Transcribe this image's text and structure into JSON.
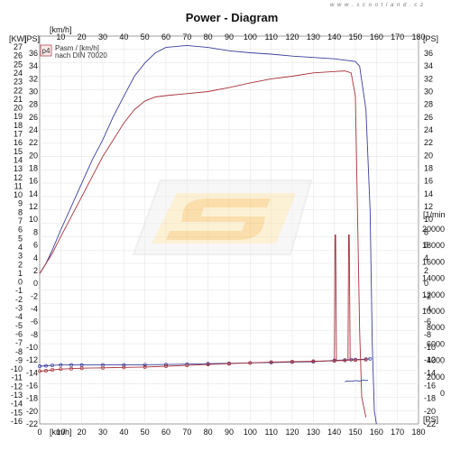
{
  "watermark": "w w w . s c o o t l a n d . c z",
  "chart_data": {
    "type": "line",
    "title": "Power - Diagram",
    "x_unit": "[km/h]",
    "x_ticks": [
      "0",
      "10",
      "20",
      "30",
      "40",
      "50",
      "60",
      "70",
      "80",
      "90",
      "100",
      "110",
      "120",
      "130",
      "140",
      "150",
      "160",
      "170",
      "180"
    ],
    "xlim": [
      0,
      180
    ],
    "left_outer_unit": "[KW]",
    "left_outer_ticks": [
      "27",
      "26",
      "25",
      "24",
      "23",
      "22",
      "21",
      "20",
      "19",
      "18",
      "17",
      "16",
      "15",
      "14",
      "13",
      "12",
      "11",
      "10",
      "9",
      "8",
      "7",
      "6",
      "5",
      "4",
      "3",
      "2",
      "1",
      "0",
      "-1",
      "-2",
      "-3",
      "-4",
      "-5",
      "-6",
      "-7",
      "-8",
      "-9",
      "-10",
      "-11",
      "-12",
      "-13",
      "-14",
      "-15",
      "-16"
    ],
    "left_inner_unit": "[PS]",
    "left_inner_ticks": [
      "36",
      "34",
      "32",
      "30",
      "28",
      "26",
      "24",
      "22",
      "20",
      "18",
      "16",
      "14",
      "12",
      "10",
      "8",
      "6",
      "4",
      "2",
      "0",
      "-2",
      "-4",
      "-6",
      "-8",
      "-10",
      "-12",
      "-14",
      "-16",
      "-18",
      "-20",
      "-22"
    ],
    "right_unit": "[PS]",
    "right_ticks": [
      "36",
      "34",
      "32",
      "30",
      "28",
      "26",
      "24",
      "22",
      "20",
      "18",
      "16",
      "14",
      "12",
      "10",
      "8",
      "6",
      "4",
      "2",
      "0",
      "-2",
      "-4",
      "-6",
      "-8",
      "-10",
      "-12",
      "-14",
      "-16",
      "-18",
      "-20",
      "-22"
    ],
    "rpm_unit": "[1/min",
    "rpm_ticks": [
      "20000",
      "18000",
      "16000",
      "14000",
      "12000",
      "10000",
      "8000",
      "6000",
      "4000",
      "2000",
      "0"
    ],
    "ylim_ps": [
      -22,
      36
    ],
    "ylim_rpm": [
      0,
      20000
    ],
    "legend": {
      "box": "p4",
      "line1": "Pasm / [km/h]",
      "line2": "nach DIN 70020"
    },
    "series": [
      {
        "color": "#3a3f9c",
        "axis": "ps",
        "x": [
          0,
          3,
          6,
          10,
          15,
          20,
          25,
          30,
          35,
          40,
          45,
          50,
          55,
          60,
          70,
          80,
          90,
          100,
          110,
          120,
          130,
          140,
          145,
          150,
          152,
          155,
          157,
          158,
          159,
          160
        ],
        "y": [
          0.5,
          2,
          4,
          7,
          10.5,
          14,
          17.5,
          20.5,
          24,
          27,
          30,
          32,
          33.5,
          34.3,
          34.6,
          34.3,
          33.8,
          33.5,
          33.3,
          33,
          32.8,
          32.6,
          32.4,
          32.2,
          31.5,
          25,
          10,
          -10,
          -20,
          -22
        ]
      },
      {
        "color": "#a8323a",
        "axis": "ps",
        "x": [
          0,
          3,
          6,
          10,
          15,
          20,
          25,
          30,
          35,
          40,
          45,
          50,
          55,
          60,
          70,
          80,
          90,
          100,
          110,
          120,
          130,
          140,
          145,
          148,
          150,
          151,
          152,
          153,
          155
        ],
        "y": [
          0.5,
          2,
          3.5,
          6,
          9,
          12,
          15,
          18,
          20.5,
          23,
          25,
          26.3,
          26.9,
          27.1,
          27.4,
          27.7,
          28.3,
          29,
          29.6,
          30,
          30.5,
          30.7,
          30.8,
          30.5,
          27,
          10,
          -8,
          -18,
          -21
        ]
      },
      {
        "color": "#3a3f9c",
        "axis": "rpm",
        "markers": true,
        "x": [
          0,
          3,
          6,
          10,
          15,
          20,
          30,
          40,
          50,
          60,
          70,
          80,
          90,
          100,
          110,
          120,
          130,
          140,
          145,
          148,
          150,
          155,
          157
        ],
        "y": [
          3300,
          3350,
          3400,
          3450,
          3450,
          3450,
          3450,
          3450,
          3470,
          3500,
          3550,
          3600,
          3650,
          3700,
          3750,
          3800,
          3850,
          4000,
          4050,
          4100,
          4100,
          4150,
          4200
        ]
      },
      {
        "color": "#a8323a",
        "axis": "rpm",
        "markers": true,
        "x": [
          0,
          3,
          6,
          10,
          15,
          20,
          30,
          40,
          50,
          60,
          70,
          80,
          90,
          100,
          110,
          120,
          130,
          140,
          145,
          150,
          155
        ],
        "y": [
          2700,
          2750,
          2850,
          2950,
          3000,
          3050,
          3100,
          3150,
          3200,
          3300,
          3400,
          3500,
          3600,
          3700,
          3800,
          3850,
          3900,
          3950,
          4000,
          4050,
          4100
        ]
      },
      {
        "color": "#a8323a",
        "axis": "rpm",
        "x": [
          140,
          140.3,
          140.6,
          141
        ],
        "y": [
          4000,
          19300,
          19300,
          4000
        ]
      },
      {
        "color": "#a8323a",
        "axis": "rpm",
        "x": [
          146.5,
          146.8,
          147.1,
          147.5
        ],
        "y": [
          4050,
          19300,
          19300,
          4050
        ]
      },
      {
        "color": "#3a3f9c",
        "axis": "rpm",
        "x": [
          145,
          146,
          148,
          150,
          152,
          154,
          155,
          156
        ],
        "y": [
          1400,
          1500,
          1450,
          1550,
          1500,
          1600,
          1550,
          1600
        ]
      }
    ]
  }
}
